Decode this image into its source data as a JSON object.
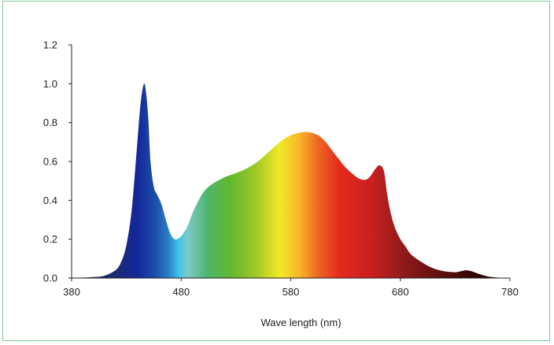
{
  "chart_data": {
    "type": "area",
    "title": "",
    "xlabel": "Wave length (nm)",
    "ylabel": "",
    "xlim": [
      380,
      780
    ],
    "ylim": [
      0,
      1.2
    ],
    "x_ticks": [
      "380",
      "480",
      "580",
      "680",
      "780"
    ],
    "y_ticks": [
      "0.0",
      "0.2",
      "0.4",
      "0.6",
      "0.8",
      "1.0",
      "1.2"
    ],
    "grid": false,
    "fill": "visible-spectrum color gradient",
    "series": [
      {
        "x": [
          380,
          400,
          410,
          420,
          425,
          430,
          435,
          440,
          443,
          446,
          448,
          450,
          452,
          455,
          458,
          462,
          466,
          470,
          474,
          478,
          482,
          486,
          490,
          495,
          500,
          505,
          510,
          515,
          520,
          530,
          540,
          550,
          560,
          570,
          580,
          590,
          597,
          605,
          612,
          620,
          630,
          640,
          647,
          652,
          657,
          661,
          665,
          668,
          671,
          675,
          680,
          685,
          690,
          700,
          710,
          720,
          730,
          735,
          740,
          745,
          750,
          760,
          770,
          780
        ],
        "values": [
          0.0,
          0.005,
          0.012,
          0.04,
          0.08,
          0.17,
          0.36,
          0.7,
          0.9,
          1.0,
          0.95,
          0.82,
          0.6,
          0.47,
          0.43,
          0.38,
          0.3,
          0.23,
          0.2,
          0.205,
          0.23,
          0.27,
          0.33,
          0.39,
          0.44,
          0.47,
          0.49,
          0.505,
          0.52,
          0.54,
          0.565,
          0.6,
          0.65,
          0.7,
          0.735,
          0.75,
          0.75,
          0.735,
          0.7,
          0.64,
          0.57,
          0.52,
          0.505,
          0.52,
          0.56,
          0.58,
          0.55,
          0.43,
          0.34,
          0.26,
          0.2,
          0.16,
          0.12,
          0.08,
          0.05,
          0.035,
          0.03,
          0.035,
          0.04,
          0.035,
          0.025,
          0.008,
          0.002,
          0.0
        ]
      }
    ]
  }
}
